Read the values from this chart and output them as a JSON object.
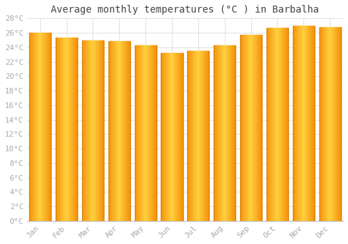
{
  "title": "Average monthly temperatures (°C ) in Barbalha",
  "months": [
    "Jan",
    "Feb",
    "Mar",
    "Apr",
    "May",
    "Jun",
    "Jul",
    "Aug",
    "Sep",
    "Oct",
    "Nov",
    "Dec"
  ],
  "values": [
    26.0,
    25.3,
    24.9,
    24.8,
    24.3,
    23.2,
    23.5,
    24.3,
    25.7,
    26.7,
    27.0,
    26.8
  ],
  "ylim": [
    0,
    28
  ],
  "yticks": [
    0,
    2,
    4,
    6,
    8,
    10,
    12,
    14,
    16,
    18,
    20,
    22,
    24,
    26,
    28
  ],
  "bar_color_center": "#FFD060",
  "bar_color_edge": "#F59500",
  "background_color": "#FFFFFF",
  "grid_color": "#E0E0E0",
  "title_fontsize": 10,
  "tick_fontsize": 8,
  "title_font": "monospace"
}
